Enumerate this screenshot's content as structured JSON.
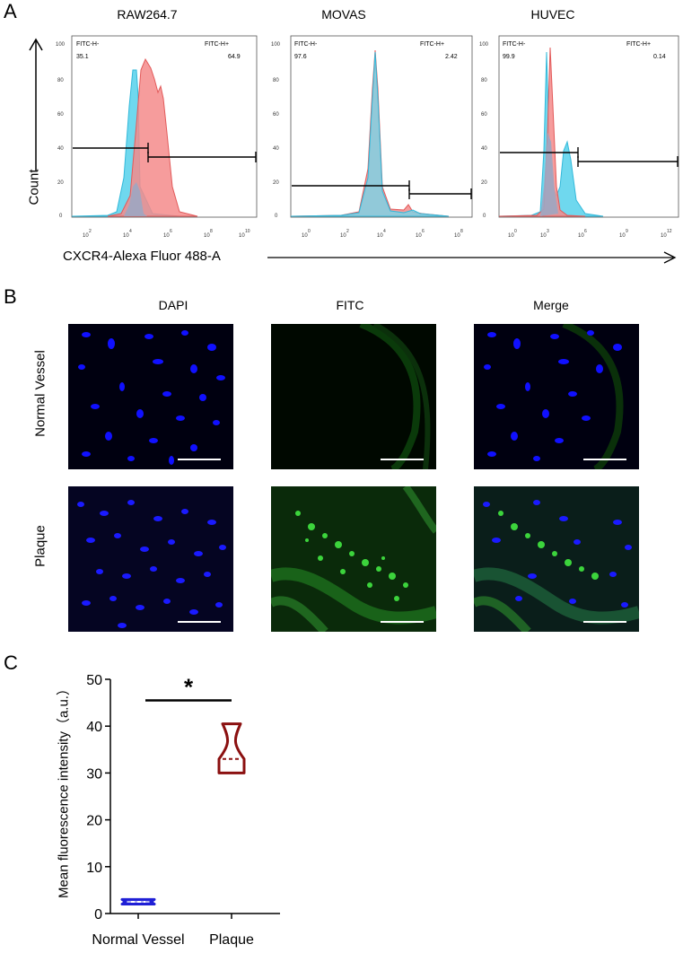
{
  "panel_labels": {
    "a": "A",
    "b": "B",
    "c": "C"
  },
  "flow": {
    "y_title": "Count",
    "x_title": "CXCR4-Alexa Fluor 488-A",
    "y_ticks": [
      "100",
      "80",
      "60",
      "40",
      "20",
      "0"
    ],
    "gate_neg_label": "FITC-H-",
    "gate_pos_label": "FITC-H+",
    "panels": [
      {
        "title": "RAW264.7",
        "neg": "35.1",
        "pos": "64.9",
        "x_ticks": [
          "10",
          "10",
          "10",
          "10",
          "10"
        ],
        "x_exp": [
          "2",
          "4",
          "6",
          "8",
          "10"
        ]
      },
      {
        "title": "MOVAS",
        "neg": "97.6",
        "pos": "2.42",
        "x_ticks": [
          "10",
          "10",
          "10",
          "10",
          "10"
        ],
        "x_exp": [
          "0",
          "2",
          "4",
          "6",
          "8"
        ]
      },
      {
        "title": "HUVEC",
        "neg": "99.9",
        "pos": "0.14",
        "x_ticks": [
          "10",
          "10",
          "10",
          "10",
          "10"
        ],
        "x_exp": [
          "0",
          "3",
          "6",
          "9",
          "12"
        ]
      }
    ]
  },
  "imaging": {
    "columns": [
      "DAPI",
      "FITC",
      "Merge"
    ],
    "rows": [
      "Normal Vessel",
      "Plaque"
    ]
  },
  "chart_data": {
    "type": "violin",
    "title": "",
    "xlabel": "",
    "ylabel": "Mean fluorescence intensity（a.u.）",
    "ylim": [
      0,
      50
    ],
    "y_ticks": [
      "0",
      "10",
      "20",
      "30",
      "40",
      "50"
    ],
    "categories": [
      "Normal Vessel",
      "Plaque"
    ],
    "series": [
      {
        "category": "Normal Vessel",
        "min": 2.0,
        "median": 2.5,
        "max": 3.0,
        "color": "#1f1fd6"
      },
      {
        "category": "Plaque",
        "min": 30.0,
        "median": 33.0,
        "max": 40.5,
        "color": "#8b1010"
      }
    ],
    "significance": "*",
    "grid": false
  }
}
